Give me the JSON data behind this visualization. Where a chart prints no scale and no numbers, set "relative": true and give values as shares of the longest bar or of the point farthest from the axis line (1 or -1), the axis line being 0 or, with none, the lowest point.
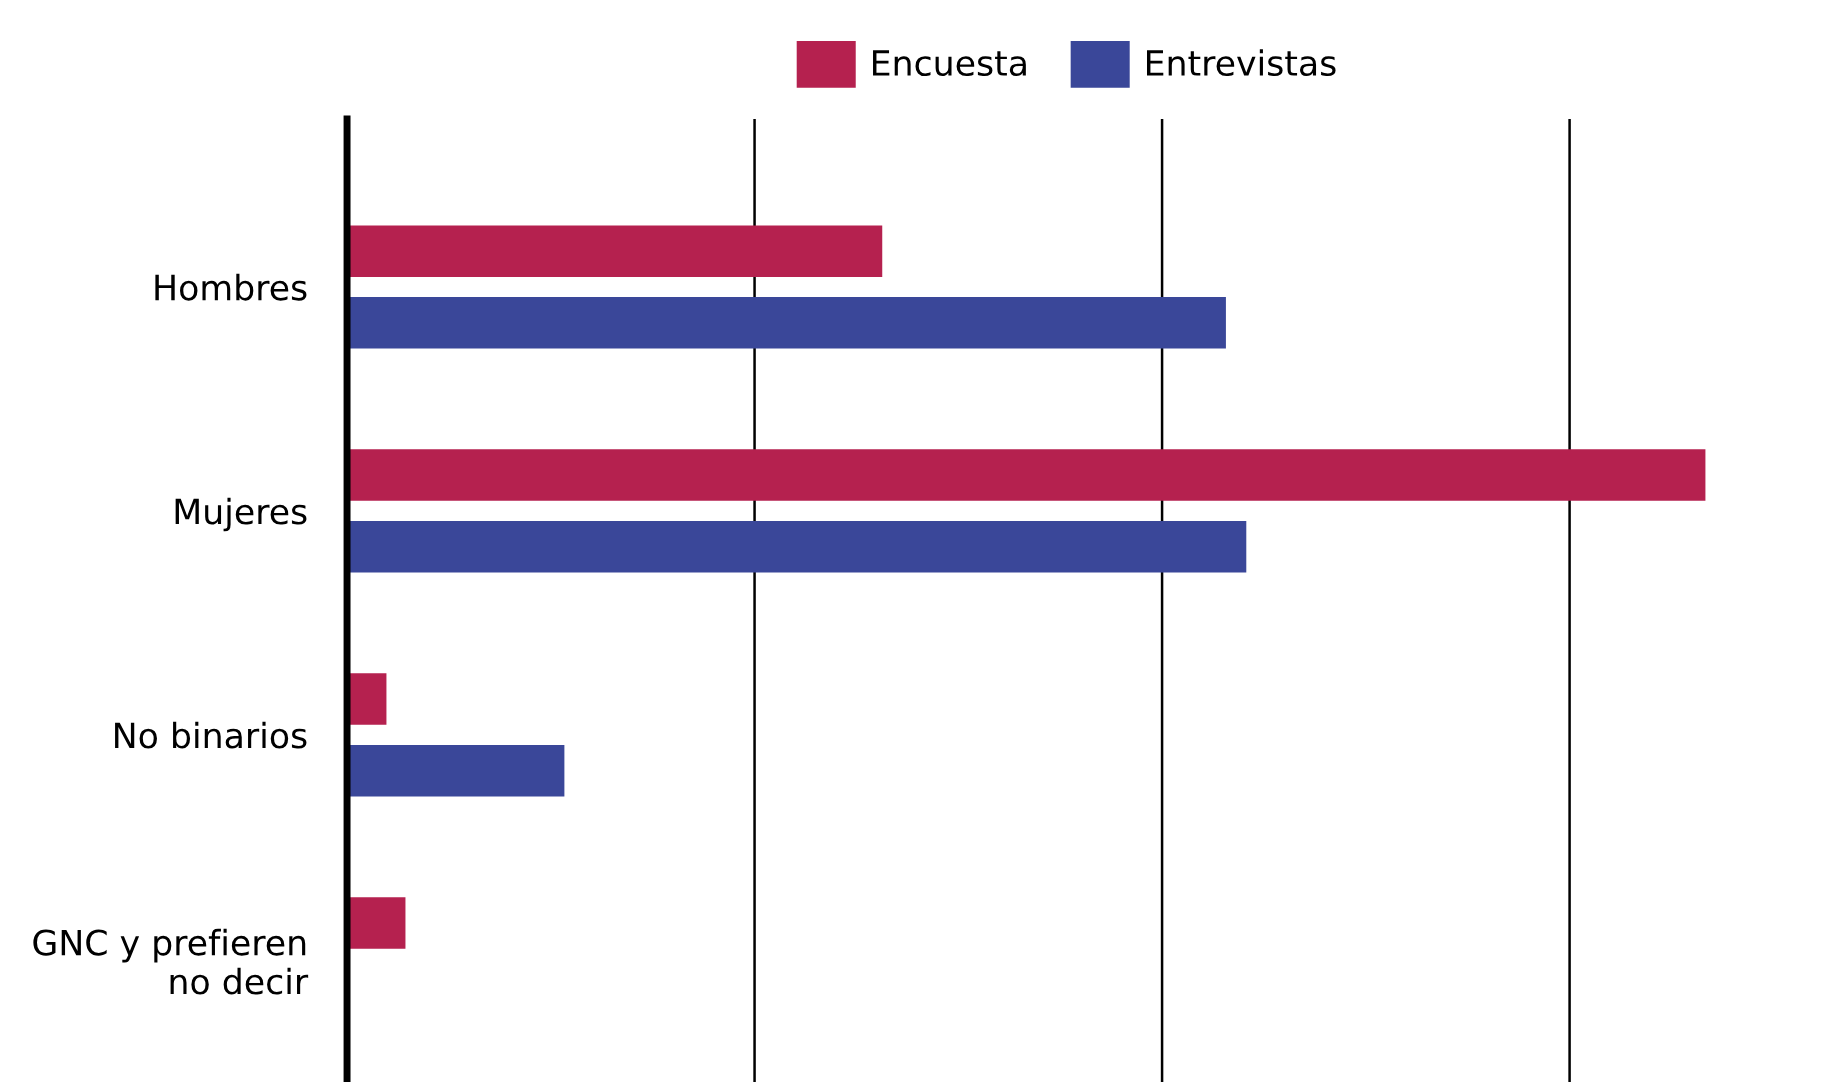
{
  "chart_data": {
    "type": "bar",
    "orientation": "horizontal",
    "relative": true,
    "categories": [
      "Hombres",
      "Mujeres",
      "No binarios",
      "GNC y prefieren\nno decir"
    ],
    "series": [
      {
        "name": "Encuesta",
        "color": "#b5214f",
        "values": [
          0.394,
          1,
          0.029,
          0.043
        ]
      },
      {
        "name": "Entrevistas",
        "color": "#3a4799",
        "values": [
          0.647,
          0.662,
          0.16,
          null
        ]
      }
    ],
    "grid": "x",
    "legend": "top"
  }
}
